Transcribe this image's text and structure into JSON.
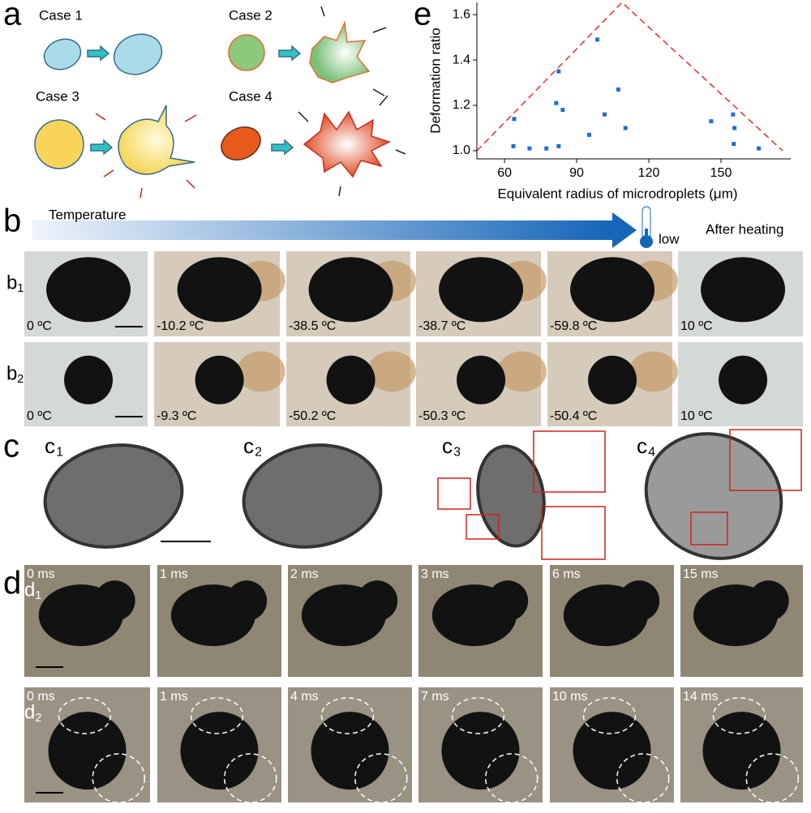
{
  "panels": {
    "a": {
      "label": "a",
      "cases": [
        "Case 1",
        "Case 2",
        "Case 3",
        "Case 4"
      ]
    },
    "b": {
      "label": "b",
      "arrow_label": "Temperature",
      "thermometer_label": "low",
      "after_label": "After heating",
      "rows": [
        {
          "label": "b",
          "sub": "1",
          "temps": [
            "0 ºC",
            "-10.2 ºC",
            "-38.5 ºC",
            "-38.7 ºC",
            "-59.8 ºC",
            "10 ºC"
          ]
        },
        {
          "label": "b",
          "sub": "2",
          "temps": [
            "0 ºC",
            "-9.3 ºC",
            "-50.2 ºC",
            "-50.3 ºC",
            "-50.4 ºC",
            "10 ºC"
          ]
        }
      ]
    },
    "c": {
      "label": "c",
      "images": [
        {
          "label": "c",
          "sub": "1"
        },
        {
          "label": "c",
          "sub": "2"
        },
        {
          "label": "c",
          "sub": "3"
        },
        {
          "label": "c",
          "sub": "4"
        }
      ]
    },
    "d": {
      "label": "d",
      "rows": [
        {
          "label": "d",
          "sub": "1",
          "times": [
            "0 ms",
            "1 ms",
            "2 ms",
            "3 ms",
            "6 ms",
            "15 ms"
          ]
        },
        {
          "label": "d",
          "sub": "2",
          "times": [
            "0 ms",
            "1 ms",
            "4 ms",
            "7 ms",
            "10 ms",
            "14 ms"
          ]
        }
      ]
    }
  },
  "chart_data": {
    "type": "scatter",
    "panel_label": "e",
    "x_label": "Equivalent radius of microdroplets (μm)",
    "y_label": "Deformation ratio",
    "x": [
      64.0,
      63.7,
      70.4,
      77.4,
      81.5,
      82.5,
      84.2,
      82.5,
      95.2,
      98.6,
      101.6,
      107.3,
      110.3,
      145.9,
      155.0,
      155.6,
      155.3,
      165.7
    ],
    "values": [
      1.14,
      1.02,
      1.01,
      1.01,
      1.21,
      1.35,
      1.18,
      1.02,
      1.07,
      1.49,
      1.16,
      1.27,
      1.1,
      1.13,
      1.16,
      1.1,
      1.03,
      1.01
    ],
    "color": "#1f6fd0",
    "xlim": [
      48.5,
      179
    ],
    "ylim": [
      0.964,
      1.654
    ],
    "xticks": [
      60,
      90,
      120,
      150
    ],
    "yticks": [
      {
        "value": 1,
        "label": "1.0"
      },
      {
        "value": 1.2,
        "label": "1.2"
      },
      {
        "value": 1.4,
        "label": "1.4"
      },
      {
        "value": 1.6,
        "label": "1.6"
      }
    ]
  }
}
